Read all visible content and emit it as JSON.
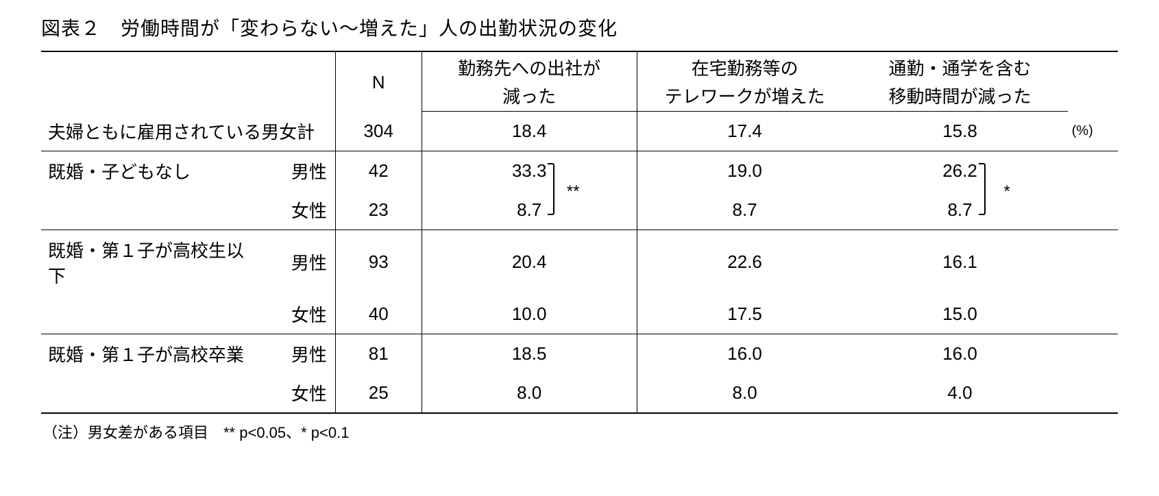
{
  "title": "図表２　労働時間が「変わらない～増えた」人の出勤状況の変化",
  "head": {
    "n": "N",
    "c1_line1": "勤務先への出社が",
    "c1_line2": "減った",
    "c2_line1": "在宅勤務等の",
    "c2_line2": "テレワークが増えた",
    "c3_line1": "通勤・通学を含む",
    "c3_line2": "移動時間が減った"
  },
  "summary": {
    "label": "夫婦ともに雇用されている男女計",
    "n": "304",
    "v1": "18.4",
    "v2": "17.4",
    "v3": "15.8",
    "unit": "(%)"
  },
  "groups": [
    {
      "label": "既婚・子どもなし",
      "male": {
        "gender": "男性",
        "n": "42",
        "v1": "33.3",
        "v2": "19.0",
        "v3": "26.2"
      },
      "female": {
        "gender": "女性",
        "n": "23",
        "v1": "8.7",
        "v2": "8.7",
        "v3": "8.7"
      },
      "sig_v1": "**",
      "sig_v3": "*"
    },
    {
      "label": "既婚・第１子が高校生以下",
      "male": {
        "gender": "男性",
        "n": "93",
        "v1": "20.4",
        "v2": "22.6",
        "v3": "16.1"
      },
      "female": {
        "gender": "女性",
        "n": "40",
        "v1": "10.0",
        "v2": "17.5",
        "v3": "15.0"
      }
    },
    {
      "label": "既婚・第１子が高校卒業",
      "male": {
        "gender": "男性",
        "n": "81",
        "v1": "18.5",
        "v2": "16.0",
        "v3": "16.0"
      },
      "female": {
        "gender": "女性",
        "n": "25",
        "v1": "8.0",
        "v2": "8.0",
        "v3": "4.0"
      }
    }
  ],
  "note": "（注）男女差がある項目　** p<0.05、* p<0.1"
}
